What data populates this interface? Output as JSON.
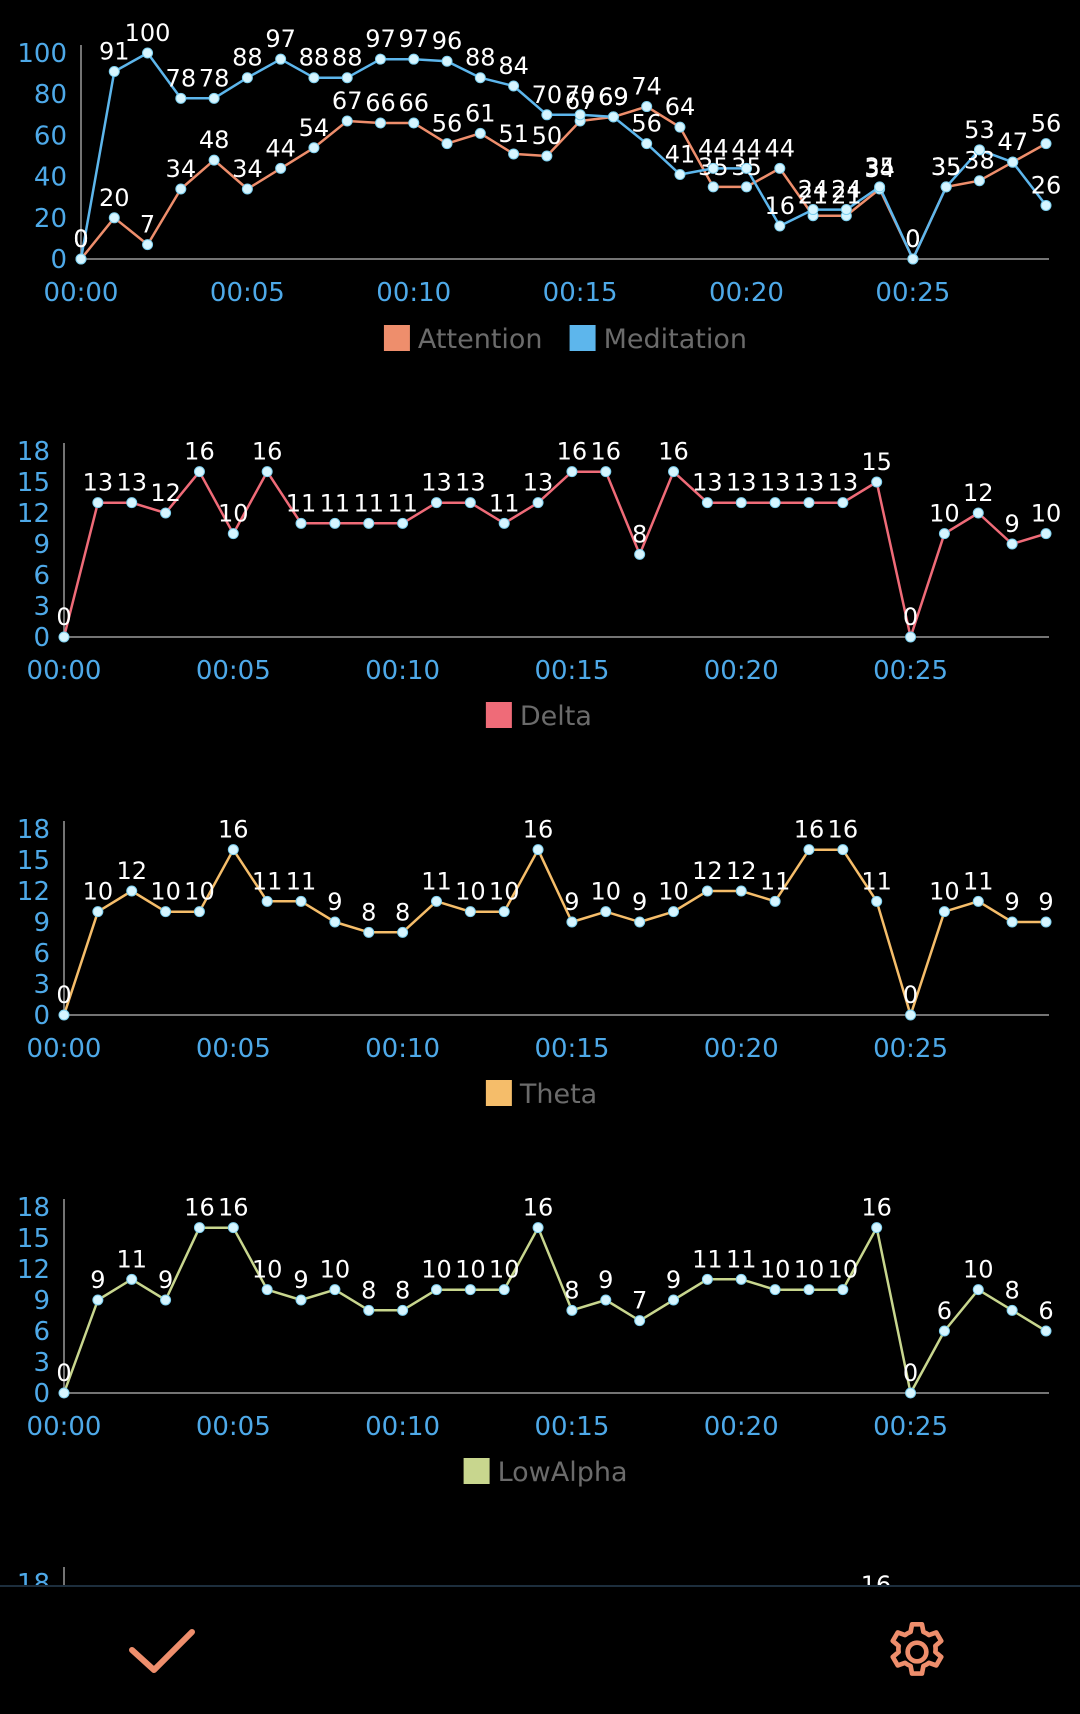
{
  "chart_data": [
    {
      "type": "line",
      "x": [
        "00:00",
        "00:01",
        "00:02",
        "00:03",
        "00:04",
        "00:05",
        "00:06",
        "00:07",
        "00:08",
        "00:09",
        "00:10",
        "00:11",
        "00:12",
        "00:13",
        "00:14",
        "00:15",
        "00:16",
        "00:17",
        "00:18",
        "00:19",
        "00:20",
        "00:21",
        "00:22",
        "00:23",
        "00:24",
        "00:25",
        "00:26",
        "00:27",
        "00:28",
        "00:29"
      ],
      "xticks": [
        "00:00",
        "00:05",
        "00:10",
        "00:15",
        "00:20",
        "00:25"
      ],
      "yticks": [
        0,
        20,
        40,
        60,
        80,
        100
      ],
      "ylim": [
        0,
        100
      ],
      "series": [
        {
          "name": "Attention",
          "color": "#ee8e6c",
          "values": [
            0,
            20,
            7,
            34,
            48,
            34,
            44,
            54,
            67,
            66,
            66,
            56,
            61,
            51,
            50,
            67,
            69,
            74,
            64,
            35,
            35,
            44,
            21,
            21,
            34,
            0,
            35,
            38,
            47,
            56
          ]
        },
        {
          "name": "Meditation",
          "color": "#5db6ec",
          "values": [
            0,
            91,
            100,
            78,
            78,
            88,
            97,
            88,
            88,
            97,
            97,
            96,
            88,
            84,
            70,
            70,
            69,
            56,
            41,
            44,
            44,
            16,
            24,
            24,
            35,
            0,
            35,
            53,
            47,
            26
          ]
        }
      ],
      "legend": "bottom-center",
      "grid": false
    },
    {
      "type": "line",
      "x": [
        "00:00",
        "00:01",
        "00:02",
        "00:03",
        "00:04",
        "00:05",
        "00:06",
        "00:07",
        "00:08",
        "00:09",
        "00:10",
        "00:11",
        "00:12",
        "00:13",
        "00:14",
        "00:15",
        "00:16",
        "00:17",
        "00:18",
        "00:19",
        "00:20",
        "00:21",
        "00:22",
        "00:23",
        "00:24",
        "00:25",
        "00:26",
        "00:27",
        "00:28",
        "00:29"
      ],
      "xticks": [
        "00:00",
        "00:05",
        "00:10",
        "00:15",
        "00:20",
        "00:25"
      ],
      "yticks": [
        0,
        3,
        6,
        9,
        12,
        15,
        18
      ],
      "ylim": [
        0,
        18
      ],
      "series": [
        {
          "name": "Delta",
          "color": "#ef6b78",
          "values": [
            0,
            13,
            13,
            12,
            16,
            10,
            16,
            11,
            11,
            11,
            11,
            13,
            13,
            11,
            13,
            16,
            16,
            8,
            16,
            13,
            13,
            13,
            13,
            13,
            15,
            0,
            10,
            12,
            9,
            10
          ]
        }
      ],
      "legend": "bottom-center",
      "grid": false
    },
    {
      "type": "line",
      "x": [
        "00:00",
        "00:01",
        "00:02",
        "00:03",
        "00:04",
        "00:05",
        "00:06",
        "00:07",
        "00:08",
        "00:09",
        "00:10",
        "00:11",
        "00:12",
        "00:13",
        "00:14",
        "00:15",
        "00:16",
        "00:17",
        "00:18",
        "00:19",
        "00:20",
        "00:21",
        "00:22",
        "00:23",
        "00:24",
        "00:25",
        "00:26",
        "00:27",
        "00:28",
        "00:29"
      ],
      "xticks": [
        "00:00",
        "00:05",
        "00:10",
        "00:15",
        "00:20",
        "00:25"
      ],
      "yticks": [
        0,
        3,
        6,
        9,
        12,
        15,
        18
      ],
      "ylim": [
        0,
        18
      ],
      "series": [
        {
          "name": "Theta",
          "color": "#f5bd6a",
          "values": [
            0,
            10,
            12,
            10,
            10,
            16,
            11,
            11,
            9,
            8,
            8,
            11,
            10,
            10,
            16,
            9,
            10,
            9,
            10,
            12,
            12,
            11,
            16,
            16,
            11,
            0,
            10,
            11,
            9,
            9
          ]
        }
      ],
      "legend": "bottom-center",
      "grid": false
    },
    {
      "type": "line",
      "x": [
        "00:00",
        "00:01",
        "00:02",
        "00:03",
        "00:04",
        "00:05",
        "00:06",
        "00:07",
        "00:08",
        "00:09",
        "00:10",
        "00:11",
        "00:12",
        "00:13",
        "00:14",
        "00:15",
        "00:16",
        "00:17",
        "00:18",
        "00:19",
        "00:20",
        "00:21",
        "00:22",
        "00:23",
        "00:24",
        "00:25",
        "00:26",
        "00:27",
        "00:28",
        "00:29"
      ],
      "xticks": [
        "00:00",
        "00:05",
        "00:10",
        "00:15",
        "00:20",
        "00:25"
      ],
      "yticks": [
        0,
        3,
        6,
        9,
        12,
        15,
        18
      ],
      "ylim": [
        0,
        18
      ],
      "series": [
        {
          "name": "LowAlpha",
          "color": "#c8d68e",
          "values": [
            0,
            9,
            11,
            9,
            16,
            16,
            10,
            9,
            10,
            8,
            8,
            10,
            10,
            10,
            16,
            8,
            9,
            7,
            9,
            11,
            11,
            10,
            10,
            10,
            16,
            0,
            6,
            10,
            8,
            6
          ]
        }
      ],
      "legend": "bottom-center",
      "grid": false
    }
  ],
  "partial_chart": {
    "ytick": "18",
    "peak_label": "16"
  },
  "colors": {
    "axis_label": "#4ea9e8",
    "data_label": "#ffffff",
    "point_fill": "#d6f5ff",
    "legend_text": "#6b6b6b",
    "accent": "#ee8e6c"
  },
  "bottom_bar": {
    "confirm_icon": "check-icon",
    "settings_icon": "gear-icon"
  }
}
